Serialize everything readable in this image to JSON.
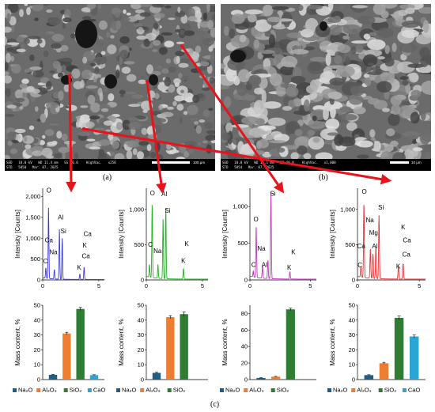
{
  "images": {
    "a": {
      "label": "(a)",
      "line1": "SED   10.0 kV   WD 11.4 mm   SS 40.0    HighVac.   x250",
      "line2": "STD   5050   Mar. 07, 2025",
      "scale": "100 μm"
    },
    "b": {
      "label": "(b)",
      "line1": "SED   10.0 kV   WD 11.1 mm   SS 40.0    HighVac.   x1,000",
      "line2": "STD   5054   Mar. 07, 2025",
      "scale": "10 μm"
    }
  },
  "figure_label": "(c)",
  "colors": {
    "arrow": "#e8141c",
    "na2o": "#1f5d82",
    "al2o3": "#ed7d31",
    "sio2": "#2e7d32",
    "cao": "#2aa6d6",
    "spectrum1": "#3b3bd6",
    "spectrum2": "#22b322",
    "spectrum3": "#c433c4",
    "spectrum4": "#e33333"
  },
  "chart_data": [
    {
      "type": "line",
      "ylabel": "Intensity [Counts]",
      "y_ticks": [
        "0",
        "500",
        "1,000",
        "1,500",
        "2,000"
      ],
      "ylim": [
        0,
        2200
      ],
      "x_ticks": [
        "0",
        "5"
      ],
      "xlim": [
        0,
        5.5
      ],
      "peaks": [
        {
          "x": 0.28,
          "y": 250,
          "label": "C"
        },
        {
          "x": 0.52,
          "y": 1720,
          "label": "O"
        },
        {
          "x": 1.04,
          "y": 230,
          "label": "Na"
        },
        {
          "x": 1.49,
          "y": 1200,
          "label": "Al"
        },
        {
          "x": 1.74,
          "y": 980,
          "label": "Si"
        },
        {
          "x": 3.31,
          "y": 130,
          "label": "K"
        },
        {
          "x": 3.69,
          "y": 290,
          "label": "Ca"
        }
      ],
      "annotations": [
        {
          "label": "O",
          "x": 0.55,
          "y": 2100
        },
        {
          "label": "Al",
          "x": 1.6,
          "y": 1450
        },
        {
          "label": "Ca",
          "x": 0.55,
          "y": 900
        },
        {
          "label": "Si",
          "x": 1.85,
          "y": 1120
        },
        {
          "label": "Ca",
          "x": 4.0,
          "y": 1050
        },
        {
          "label": "Na",
          "x": 0.95,
          "y": 620
        },
        {
          "label": "C",
          "x": 0.25,
          "y": 400
        },
        {
          "label": "K",
          "x": 3.75,
          "y": 780
        },
        {
          "label": "Ca",
          "x": 3.85,
          "y": 520
        },
        {
          "label": "K",
          "x": 3.25,
          "y": 250
        }
      ]
    },
    {
      "type": "line",
      "ylabel": "Intensity [Counts]",
      "y_ticks": [
        "0",
        "500",
        "1,000"
      ],
      "ylim": [
        0,
        1300
      ],
      "x_ticks": [
        "0",
        "5"
      ],
      "xlim": [
        0,
        5.5
      ],
      "peaks": [
        {
          "x": 0.28,
          "y": 180,
          "label": "C"
        },
        {
          "x": 0.52,
          "y": 1050,
          "label": "O"
        },
        {
          "x": 1.04,
          "y": 200,
          "label": "Na"
        },
        {
          "x": 1.49,
          "y": 850,
          "label": "Al"
        },
        {
          "x": 1.74,
          "y": 1000,
          "label": "Si"
        },
        {
          "x": 3.31,
          "y": 150,
          "label": "K"
        }
      ],
      "annotations": [
        {
          "label": "O",
          "x": 0.55,
          "y": 1200
        },
        {
          "label": "Al",
          "x": 1.6,
          "y": 1190
        },
        {
          "label": "Si",
          "x": 1.9,
          "y": 950
        },
        {
          "label": "C",
          "x": 0.35,
          "y": 470
        },
        {
          "label": "Na",
          "x": 1.0,
          "y": 380
        },
        {
          "label": "K",
          "x": 3.6,
          "y": 480
        },
        {
          "label": "K",
          "x": 3.3,
          "y": 240
        }
      ]
    },
    {
      "type": "line",
      "ylabel": "Intensity [Counts]",
      "y_ticks": [
        "0",
        "500",
        "1,000"
      ],
      "ylim": [
        0,
        1250
      ],
      "x_ticks": [
        "0",
        "5"
      ],
      "xlim": [
        0,
        5.5
      ],
      "peaks": [
        {
          "x": 0.28,
          "y": 80,
          "label": "C"
        },
        {
          "x": 0.52,
          "y": 700,
          "label": "O"
        },
        {
          "x": 1.04,
          "y": 170,
          "label": "Na"
        },
        {
          "x": 1.49,
          "y": 250,
          "label": "Al"
        },
        {
          "x": 1.74,
          "y": 1180,
          "label": "Si"
        },
        {
          "x": 3.31,
          "y": 100,
          "label": "K"
        }
      ],
      "annotations": [
        {
          "label": "Si",
          "x": 1.9,
          "y": 1150
        },
        {
          "label": "O",
          "x": 0.5,
          "y": 800
        },
        {
          "label": "Na",
          "x": 0.95,
          "y": 400
        },
        {
          "label": "C",
          "x": 0.3,
          "y": 180
        },
        {
          "label": "Al",
          "x": 1.2,
          "y": 180
        },
        {
          "label": "K",
          "x": 3.6,
          "y": 350
        },
        {
          "label": "K",
          "x": 3.25,
          "y": 140
        }
      ]
    },
    {
      "type": "line",
      "ylabel": "Intensity [Counts]",
      "y_ticks": [
        "0",
        "500",
        "1,000"
      ],
      "ylim": [
        0,
        1300
      ],
      "x_ticks": [
        "0",
        "5"
      ],
      "xlim": [
        0,
        5.5
      ],
      "peaks": [
        {
          "x": 0.28,
          "y": 150,
          "label": "C"
        },
        {
          "x": 0.52,
          "y": 1050,
          "label": "O"
        },
        {
          "x": 1.04,
          "y": 420,
          "label": "Na"
        },
        {
          "x": 1.25,
          "y": 350,
          "label": "Mg"
        },
        {
          "x": 1.49,
          "y": 450,
          "label": "Al"
        },
        {
          "x": 1.74,
          "y": 900,
          "label": "Si"
        },
        {
          "x": 3.31,
          "y": 180,
          "label": "K"
        },
        {
          "x": 3.69,
          "y": 220,
          "label": "Ca"
        }
      ],
      "annotations": [
        {
          "label": "O",
          "x": 0.55,
          "y": 1220
        },
        {
          "label": "Si",
          "x": 1.9,
          "y": 1000
        },
        {
          "label": "Na",
          "x": 1.0,
          "y": 820
        },
        {
          "label": "Mg",
          "x": 1.3,
          "y": 640
        },
        {
          "label": "Ca",
          "x": 0.3,
          "y": 450
        },
        {
          "label": "Al",
          "x": 1.4,
          "y": 450
        },
        {
          "label": "K",
          "x": 3.7,
          "y": 720
        },
        {
          "label": "Ca",
          "x": 4.0,
          "y": 530
        },
        {
          "label": "Ca",
          "x": 3.95,
          "y": 330
        },
        {
          "label": "C",
          "x": 0.2,
          "y": 180
        },
        {
          "label": "K",
          "x": 3.3,
          "y": 160
        }
      ]
    },
    {
      "type": "bar",
      "ylabel": "Mass content, %",
      "y_ticks": [
        "0",
        "10",
        "20",
        "30",
        "40",
        "50"
      ],
      "ylim": [
        0,
        50
      ],
      "categories": [
        "Na2O",
        "Al2O3",
        "SiO2",
        "CaO"
      ],
      "legend": [
        "Na₂O",
        "Al₂O₃",
        "SiO₂",
        "CaO"
      ],
      "values": [
        3.2,
        31,
        47.5,
        3
      ],
      "errors": [
        0.3,
        0.8,
        1.0,
        0.3
      ]
    },
    {
      "type": "bar",
      "ylabel": "Mass content, %",
      "y_ticks": [
        "0",
        "10",
        "20",
        "30",
        "40",
        "50"
      ],
      "ylim": [
        0,
        50
      ],
      "categories": [
        "Na2O",
        "Al2O3",
        "SiO2"
      ],
      "legend": [
        "Na₂O",
        "Al₂O₃",
        "SiO₂"
      ],
      "values": [
        4.5,
        42,
        44
      ],
      "errors": [
        0.4,
        1.0,
        1.5
      ]
    },
    {
      "type": "bar",
      "ylabel": "Mass content, %",
      "y_ticks": [
        "0",
        "20",
        "40",
        "60",
        "80"
      ],
      "ylim": [
        0,
        90
      ],
      "categories": [
        "Na2O",
        "Al2O3",
        "SiO2"
      ],
      "legend": [
        "Na₂O",
        "Al₂O₃",
        "SiO₂"
      ],
      "values": [
        2,
        3.5,
        85
      ],
      "errors": [
        0.3,
        0.4,
        1.5
      ]
    },
    {
      "type": "bar",
      "ylabel": "Mass content, %",
      "y_ticks": [
        "0",
        "10",
        "20",
        "30",
        "40",
        "50"
      ],
      "ylim": [
        0,
        50
      ],
      "categories": [
        "Na2O",
        "Al2O3",
        "SiO2",
        "CaO"
      ],
      "legend": [
        "Na₂O",
        "Al₂O₃",
        "SiO₂",
        "CaO"
      ],
      "values": [
        3,
        11,
        41.5,
        29
      ],
      "errors": [
        0.3,
        0.6,
        1.2,
        1.0
      ]
    }
  ]
}
